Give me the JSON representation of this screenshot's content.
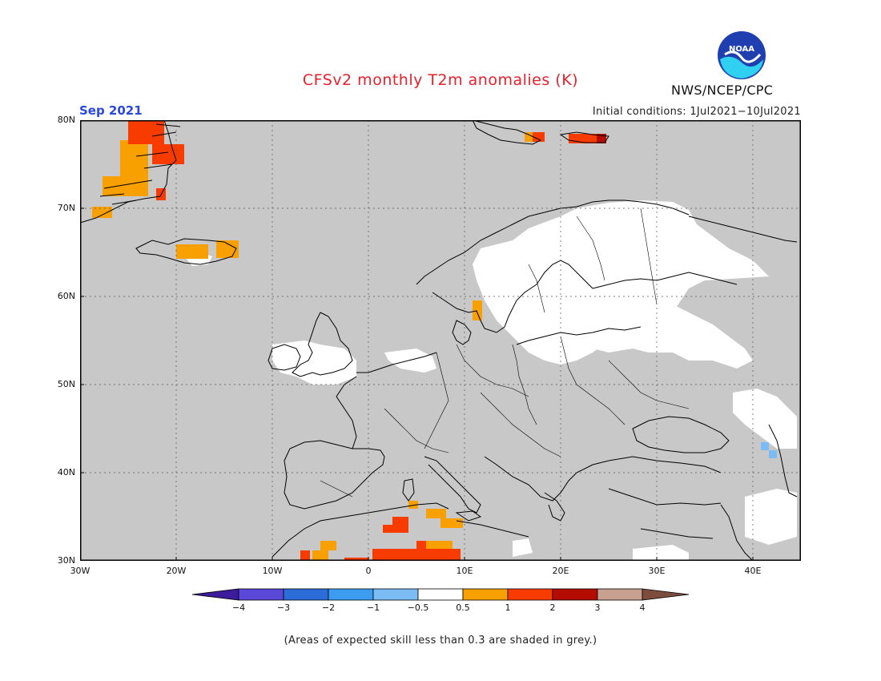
{
  "header": {
    "title": "CFSv2 monthly T2m anomalies (K)",
    "organization": "NWS/NCEP/CPC",
    "logo_text": "NOAA",
    "month": "Sep 2021",
    "initial_conditions": "Initial conditions: 1Jul2021−10Jul2021"
  },
  "map": {
    "lat_labels": [
      "80N",
      "70N",
      "60N",
      "50N",
      "40N",
      "30N"
    ],
    "lon_labels": [
      "30W",
      "20W",
      "10W",
      "0",
      "10E",
      "20E",
      "30E",
      "40E"
    ],
    "background_color": "#c8c8c8",
    "land_outline_color": "#000000"
  },
  "colorbar": {
    "labels": [
      "−4",
      "−3",
      "−2",
      "−1",
      "−0.5",
      "0.5",
      "1",
      "2",
      "3",
      "4"
    ],
    "colors": [
      "#3c1c9c",
      "#5a48d8",
      "#2c6cd8",
      "#3c9cf0",
      "#7cbcf4",
      "#ffffff",
      "#f8a000",
      "#f83c00",
      "#b40c00",
      "#c8a090",
      "#7c4c3c"
    ]
  },
  "footnote": "(Areas of expected skill less than 0.3 are shaded in grey.)"
}
